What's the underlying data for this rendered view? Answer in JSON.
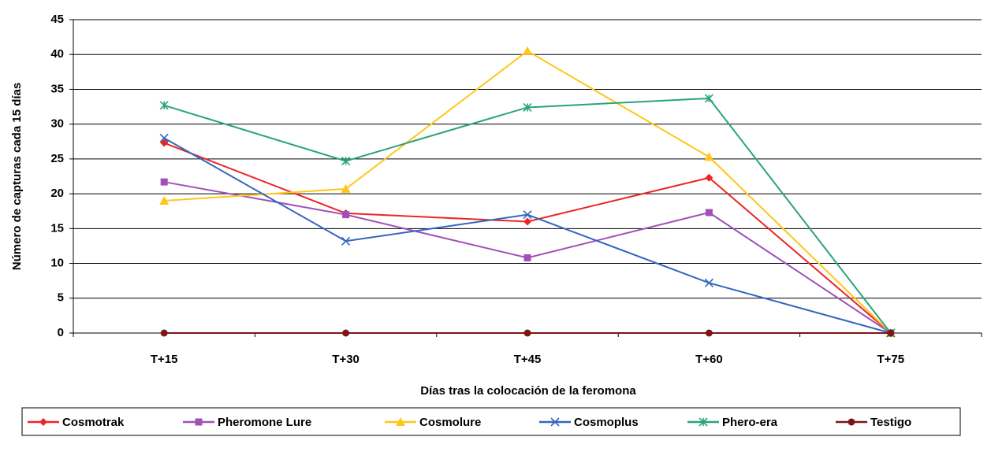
{
  "chart_data": {
    "type": "line",
    "y_label": "Número de capturas cada 15 días",
    "x_label": "Días tras la colocación de la feromona",
    "categories": [
      "T+15",
      "T+30",
      "T+45",
      "T+60",
      "T+75"
    ],
    "series": [
      {
        "name": "Cosmotrak",
        "color": "#ee2424",
        "marker": "diamond",
        "values": [
          27.3,
          17.2,
          16,
          22.3,
          0
        ]
      },
      {
        "name": "Pheromone Lure",
        "color": "#a050b8",
        "marker": "square",
        "values": [
          21.7,
          17,
          10.8,
          17.3,
          0
        ]
      },
      {
        "name": "Cosmolure",
        "color": "#ffc61a",
        "marker": "triangle",
        "values": [
          19,
          20.7,
          40.5,
          25.3,
          0
        ]
      },
      {
        "name": "Cosmoplus",
        "color": "#3366c0",
        "marker": "x",
        "values": [
          28,
          13.2,
          17,
          7.2,
          0
        ]
      },
      {
        "name": "Phero-era",
        "color": "#2aa37a",
        "marker": "star",
        "values": [
          32.7,
          24.7,
          32.4,
          33.7,
          0
        ]
      },
      {
        "name": "Testigo",
        "color": "#7f1515",
        "marker": "circle",
        "values": [
          0,
          0,
          0,
          0,
          0
        ]
      }
    ],
    "ylim": [
      0,
      45
    ],
    "yticks": [
      0,
      5,
      10,
      15,
      20,
      25,
      30,
      35,
      40,
      45
    ],
    "grid": true,
    "legend": "bottom"
  }
}
